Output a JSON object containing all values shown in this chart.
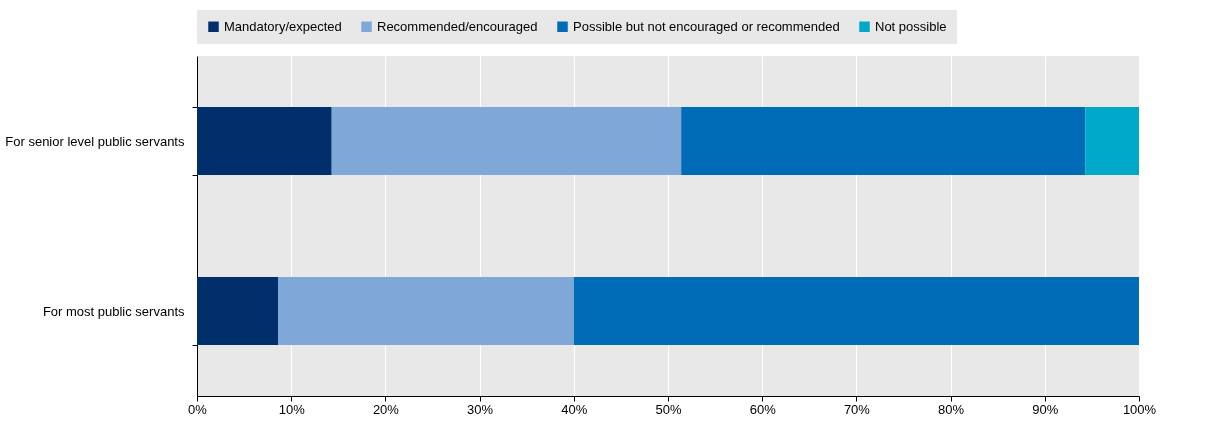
{
  "chart_data": {
    "type": "bar",
    "orientation": "horizontal",
    "stacked": true,
    "categories": [
      "For senior level public servants",
      "For most  public servants"
    ],
    "series": [
      {
        "name": "Mandatory/expected",
        "color": "#002f6c",
        "values": [
          14.3,
          8.6
        ]
      },
      {
        "name": "Recommended/encouraged",
        "color": "#7fa8d9",
        "values": [
          37.1,
          31.4
        ]
      },
      {
        "name": "Possible but not encouraged or recommended",
        "color": "#006bb6",
        "values": [
          42.9,
          60
        ]
      },
      {
        "name": "Not possible",
        "color": "#00a9c9",
        "values": [
          5.7,
          0
        ]
      }
    ],
    "xlim": [
      0,
      100
    ],
    "xticks": [
      {
        "value": 0,
        "label": "0%"
      },
      {
        "value": 10,
        "label": "10%"
      },
      {
        "value": 20,
        "label": "20%"
      },
      {
        "value": 30,
        "label": "30%"
      },
      {
        "value": 40,
        "label": "40%"
      },
      {
        "value": 50,
        "label": "50%"
      },
      {
        "value": 60,
        "label": "60%"
      },
      {
        "value": 70,
        "label": "70%"
      },
      {
        "value": 80,
        "label": "80%"
      },
      {
        "value": 90,
        "label": "90%"
      },
      {
        "value": 100,
        "label": "100%"
      }
    ],
    "grid": "x",
    "legend": "top"
  }
}
